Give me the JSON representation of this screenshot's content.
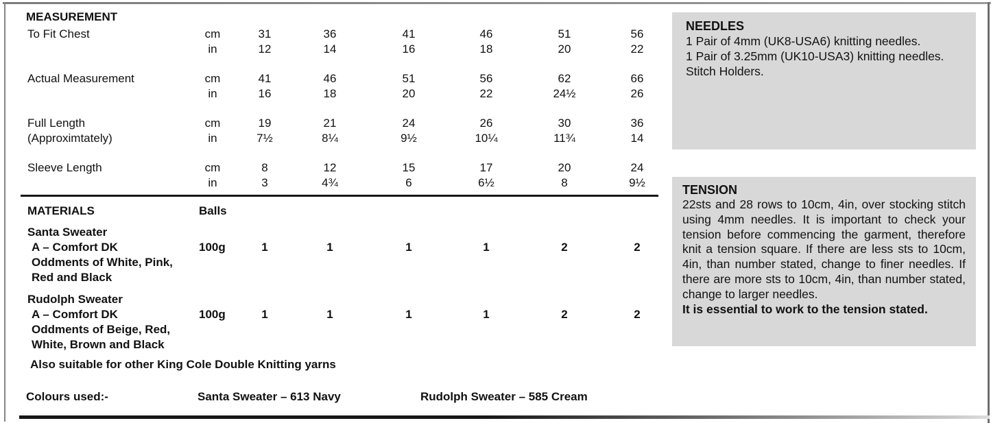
{
  "page": {
    "background": "#ffffff",
    "panel_background": "#d8d8d8",
    "text_color": "#111111"
  },
  "measurement": {
    "title": "MEASUREMENT",
    "units": {
      "cm": "cm",
      "in": "in"
    },
    "rows": [
      {
        "label": "To Fit Chest",
        "cm": [
          "31",
          "36",
          "41",
          "46",
          "51",
          "56"
        ],
        "in": [
          "12",
          "14",
          "16",
          "18",
          "20",
          "22"
        ]
      },
      {
        "label": "Actual Measurement",
        "cm": [
          "41",
          "46",
          "51",
          "56",
          "62",
          "66"
        ],
        "in": [
          "16",
          "18",
          "20",
          "22",
          "24½",
          "26"
        ]
      },
      {
        "label": "Full Length",
        "label2": "(Approximtately)",
        "cm": [
          "19",
          "21",
          "24",
          "26",
          "30",
          "36"
        ],
        "in": [
          "7½",
          "8¼",
          "9½",
          "10¼",
          "11¾",
          "14"
        ]
      },
      {
        "label": "Sleeve Length",
        "cm": [
          "8",
          "12",
          "15",
          "17",
          "20",
          "24"
        ],
        "in": [
          "3",
          "4¾",
          "6",
          "6½",
          "8",
          "9½"
        ]
      }
    ]
  },
  "materials": {
    "title": "MATERIALS",
    "balls_header": "Balls",
    "items": [
      {
        "name_lines": [
          "Santa Sweater",
          "A – Comfort DK",
          "Oddments of White, Pink,",
          "Red and Black"
        ],
        "weight": "100g",
        "balls": [
          "1",
          "1",
          "1",
          "1",
          "2",
          "2"
        ]
      },
      {
        "name_lines": [
          "Rudolph Sweater",
          "A – Comfort DK",
          "Oddments of Beige, Red,",
          "White, Brown and Black"
        ],
        "weight": "100g",
        "balls": [
          "1",
          "1",
          "1",
          "1",
          "2",
          "2"
        ]
      }
    ],
    "note": "Also suitable for other King Cole Double Knitting yarns"
  },
  "colours": {
    "label": "Colours used:-",
    "santa": "Santa Sweater – 613 Navy",
    "rudolph": "Rudolph Sweater – 585 Cream"
  },
  "needles": {
    "title": "NEEDLES",
    "lines": [
      "1 Pair of 4mm (UK8-USA6) knitting needles.",
      "1 Pair of 3.25mm (UK10-USA3) knitting needles.",
      "Stitch Holders."
    ]
  },
  "tension": {
    "title": "TENSION",
    "body": "22sts and 28 rows to 10cm, 4in, over stocking stitch using 4mm needles.  It is important to check your tension before commencing the garment, therefore knit a tension square. If there are less sts to 10cm, 4in, than number stated, change to finer needles. If there are more sts to 10cm, 4in, than number stated, change to larger needles.",
    "emphasis": "It is essential to work to the tension stated."
  }
}
